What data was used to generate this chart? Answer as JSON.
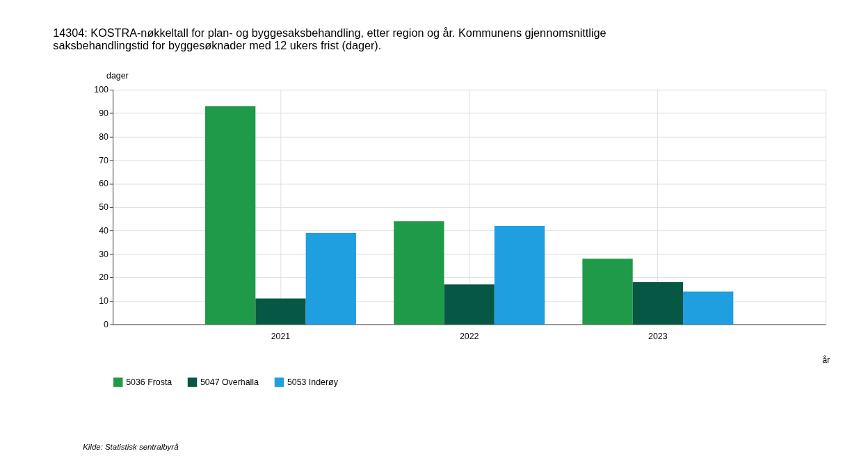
{
  "chart_data": {
    "type": "bar",
    "title": "14304: KOSTRA-nøkkeltall for plan- og byggesaksbehandling, etter region og år. Kommunens gjennomsnittlige saksbehandlingstid for byggesøknader med 12 ukers frist (dager).",
    "xlabel": "år",
    "ylabel": "dager",
    "categories": [
      "2021",
      "2022",
      "2023"
    ],
    "series": [
      {
        "name": "5036 Frosta",
        "color": "#1f9a48",
        "values": [
          93,
          44,
          28
        ]
      },
      {
        "name": "5047 Overhalla",
        "color": "#075745",
        "values": [
          11,
          17,
          18
        ]
      },
      {
        "name": "5053 Inderøy",
        "color": "#1f9fe0",
        "values": [
          39,
          42,
          14
        ]
      }
    ],
    "ylim": [
      0,
      100
    ],
    "yticks": [
      0,
      10,
      20,
      30,
      40,
      50,
      60,
      70,
      80,
      90,
      100
    ],
    "grid": true,
    "legend": "bottom",
    "annotations": [
      "Kilde:  Statistisk sentralbyrå"
    ]
  }
}
